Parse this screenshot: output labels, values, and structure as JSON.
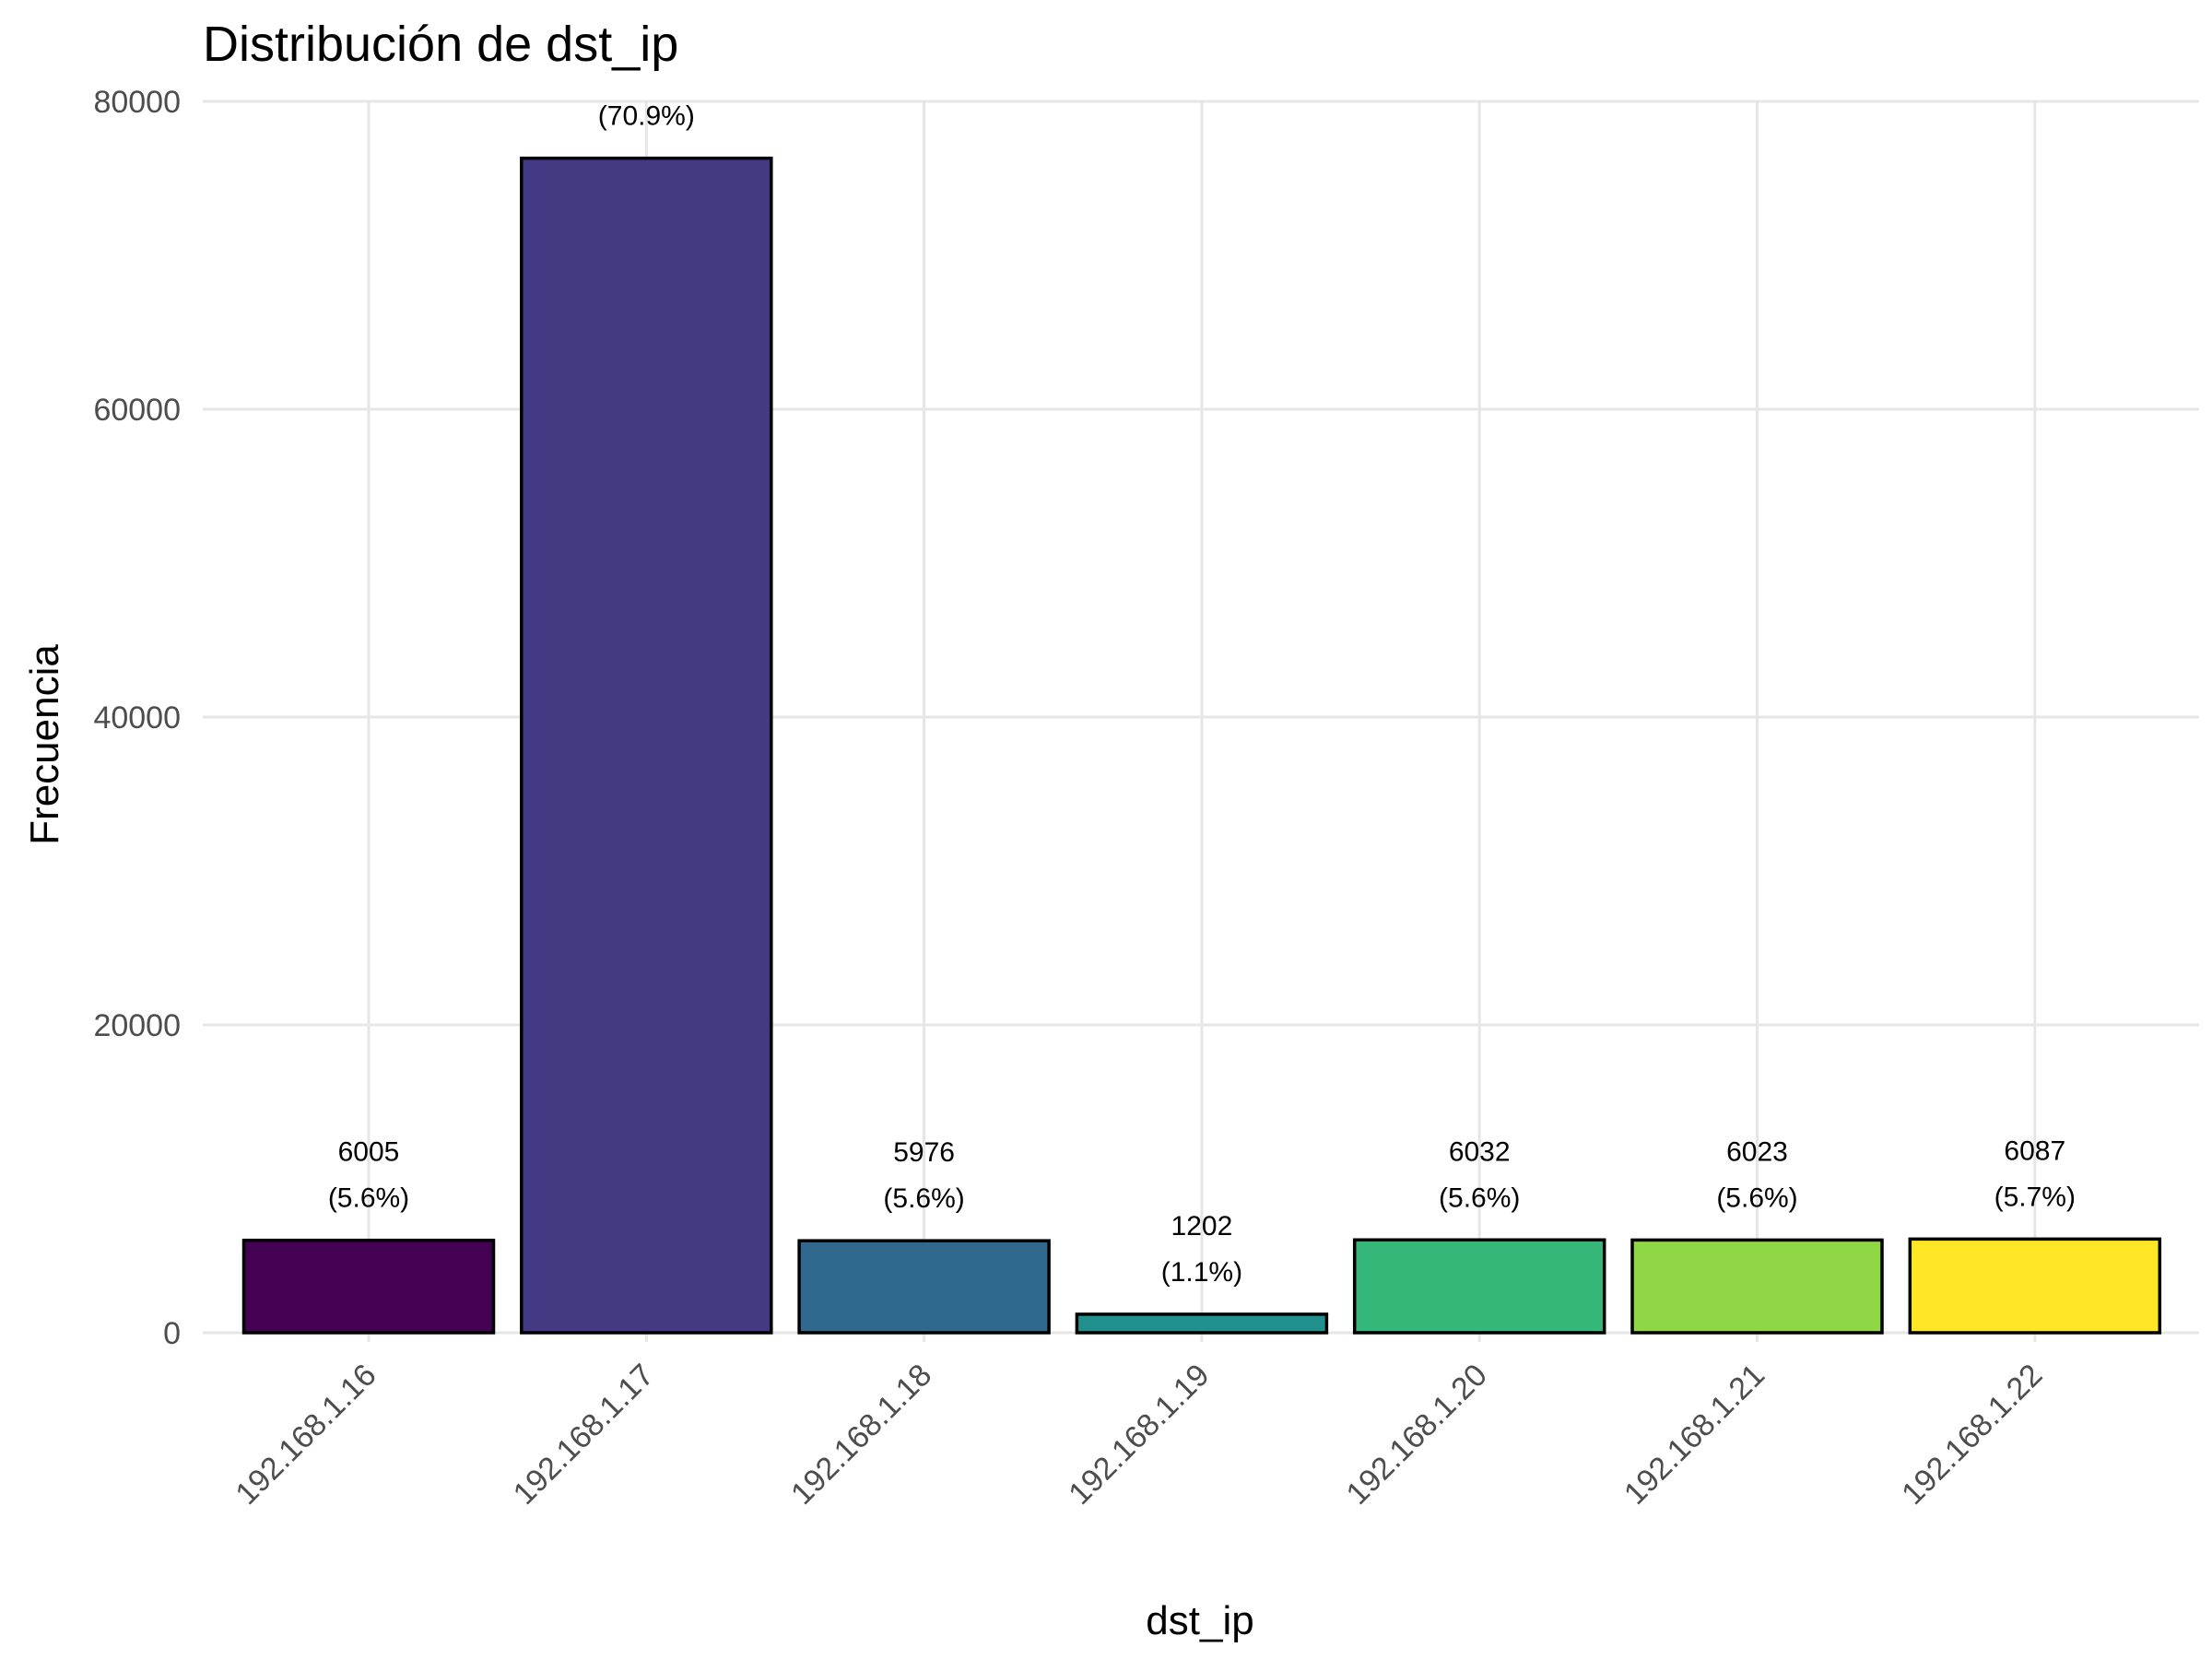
{
  "chart_data": {
    "type": "bar",
    "title": "Distribución de dst_ip",
    "xlabel": "dst_ip",
    "ylabel": "Frecuencia",
    "categories": [
      "192.168.1.16",
      "192.168.1.17",
      "192.168.1.18",
      "192.168.1.19",
      "192.168.1.20",
      "192.168.1.21",
      "192.168.1.22"
    ],
    "values": [
      6005,
      76307,
      5976,
      1202,
      6032,
      6023,
      6087
    ],
    "count_labels": [
      "6005",
      "",
      "5976",
      "1202",
      "6032",
      "6023",
      "6087"
    ],
    "percent_labels": [
      "(5.6%)",
      "(70.9%)",
      "(5.6%)",
      "(1.1%)",
      "(5.6%)",
      "(5.6%)",
      "(5.7%)"
    ],
    "colors": [
      "#440154",
      "#443A83",
      "#31688E",
      "#21908C",
      "#35B779",
      "#8FD744",
      "#FDE725"
    ],
    "ylim": [
      0,
      80000
    ],
    "yticks": [
      0,
      20000,
      40000,
      60000,
      80000
    ],
    "ytick_labels": [
      "0",
      "20000",
      "40000",
      "60000",
      "80000"
    ],
    "grid": true,
    "legend": "none"
  }
}
